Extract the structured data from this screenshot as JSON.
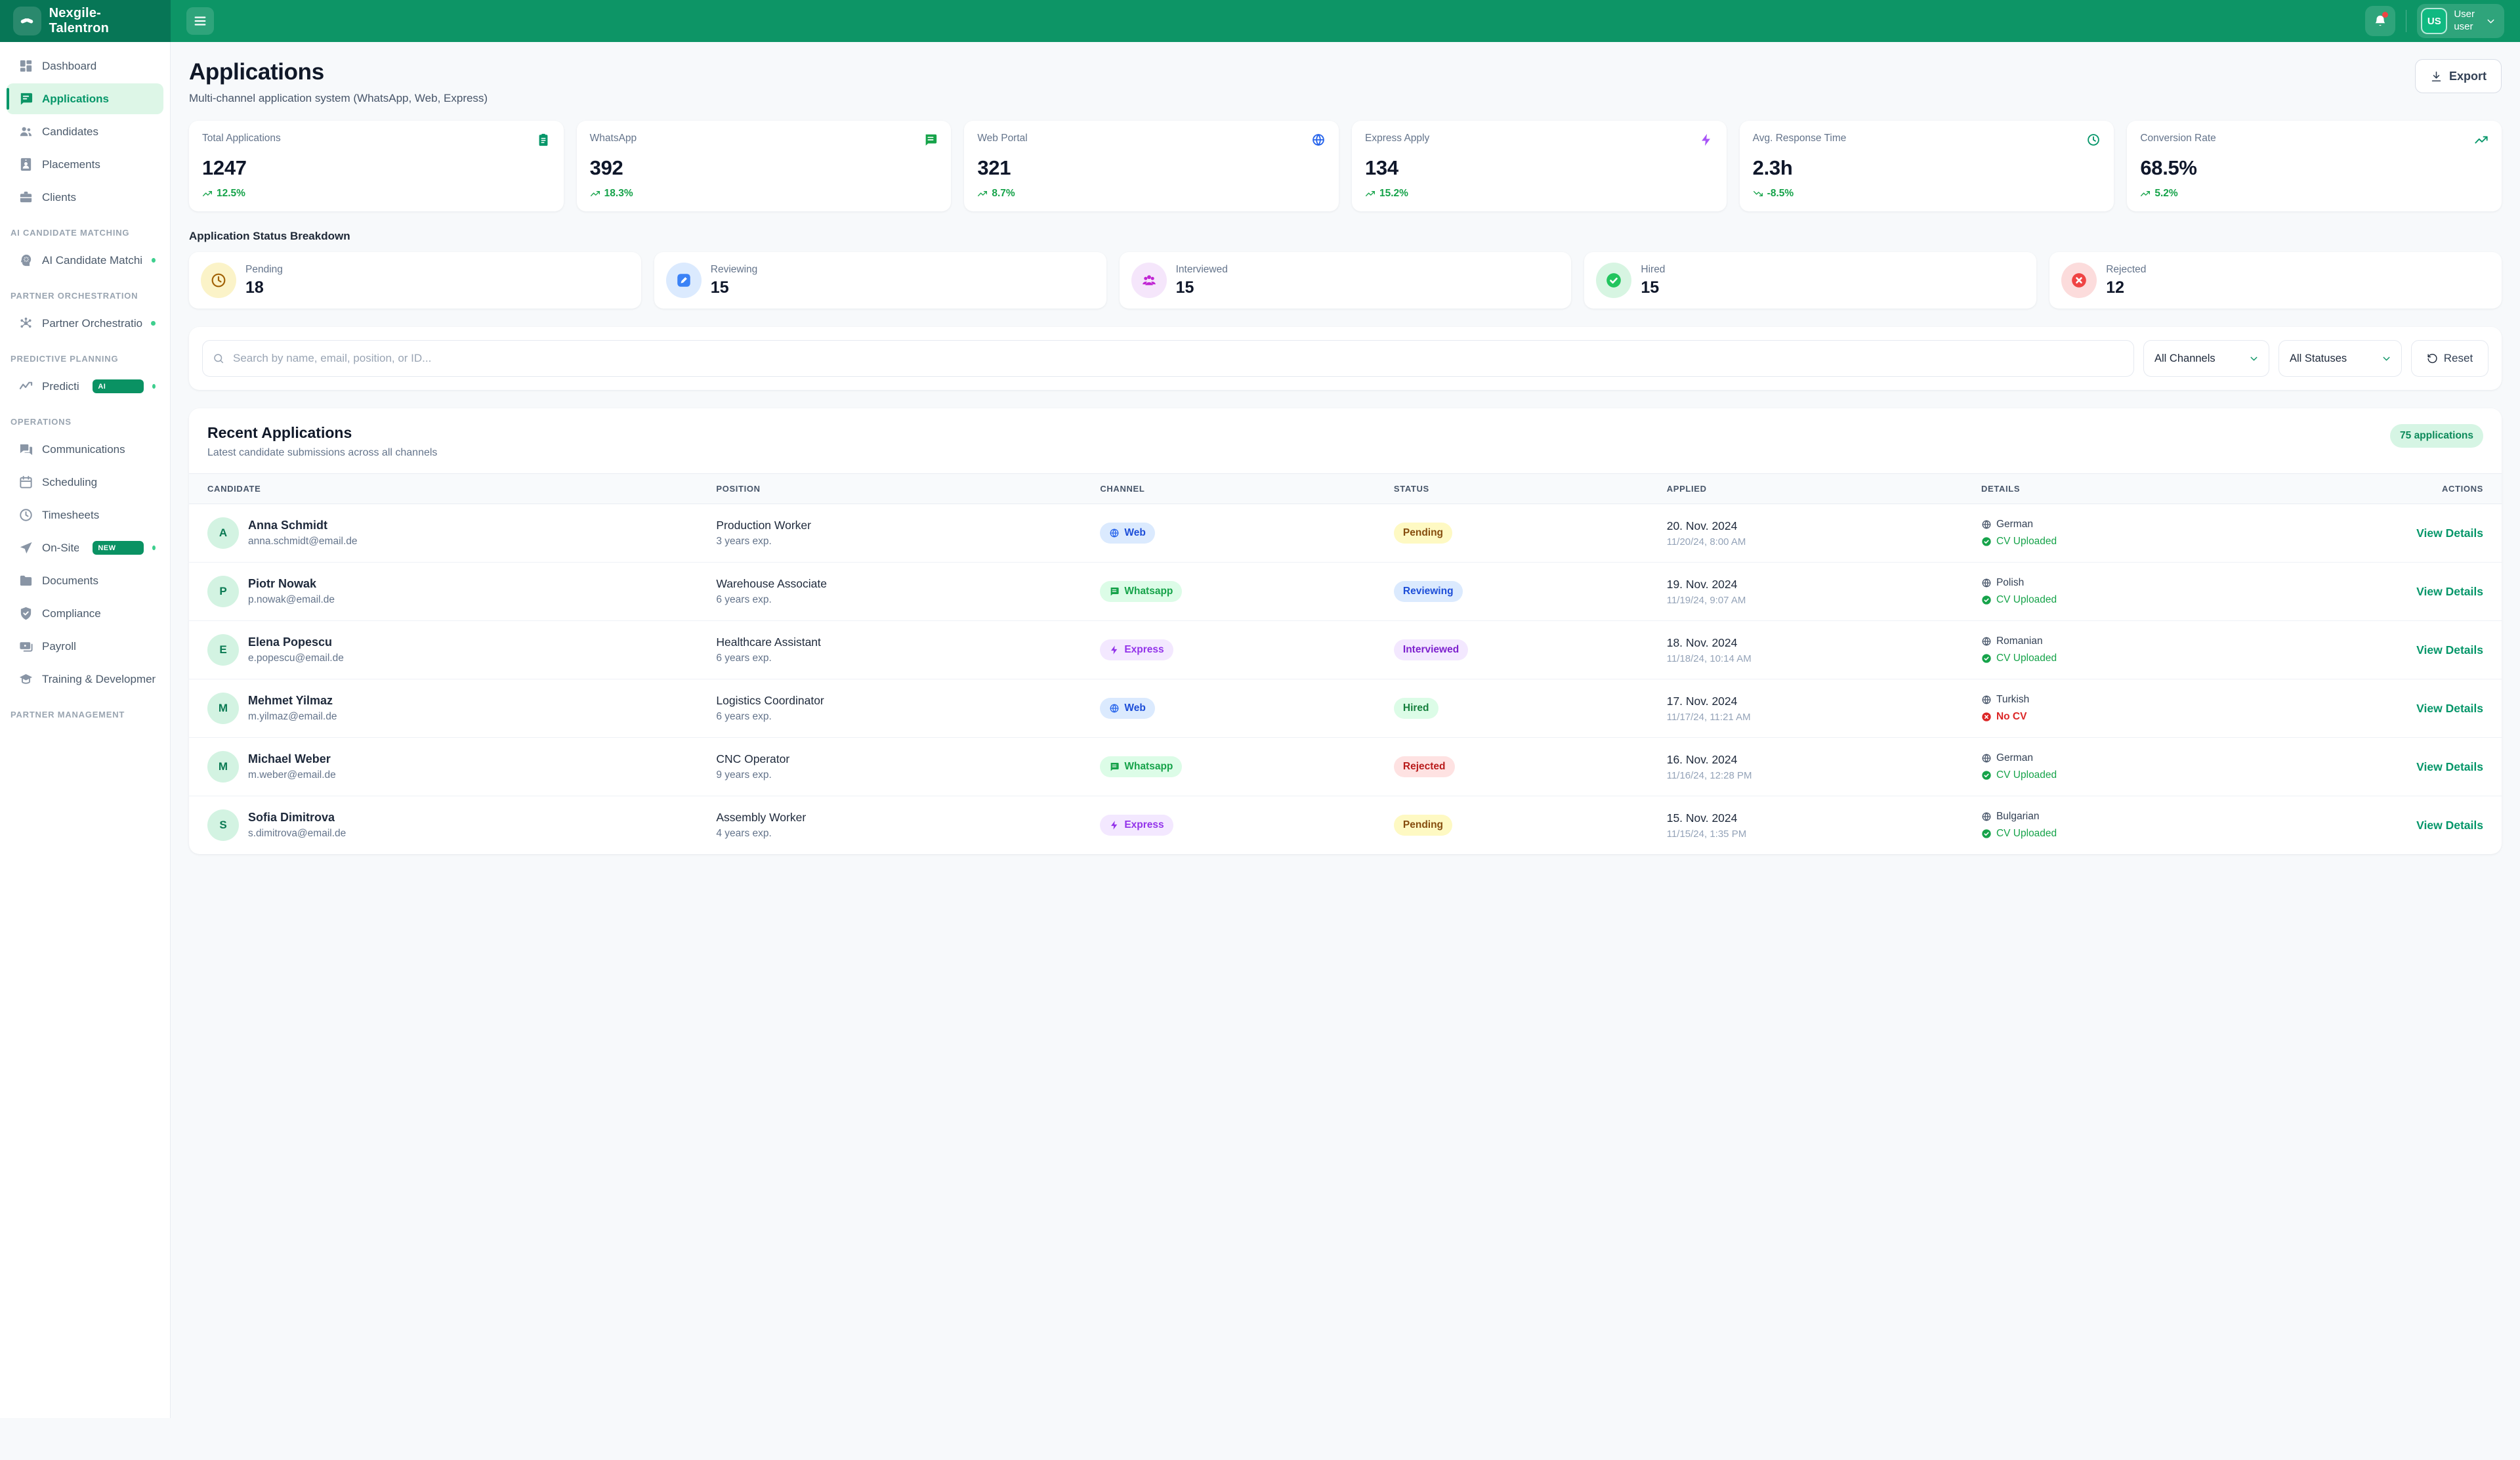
{
  "colors": {
    "topbar": "#0d9566",
    "brand_bg": "#077656",
    "accent": "#059669",
    "active_item_bg": "#ddf6e7"
  },
  "brand": {
    "name": "Nexgile-Talentron",
    "logo_icon": "handshake-icon"
  },
  "header": {
    "notifications": {
      "icon": "bell-icon",
      "has_unread": true
    },
    "user": {
      "initials": "US",
      "line1": "User",
      "line2": "user"
    }
  },
  "sidebar": {
    "sections": [
      {
        "title": "",
        "items": [
          {
            "label": "Dashboard",
            "icon": "dashboard-icon",
            "active": false
          },
          {
            "label": "Applications",
            "icon": "applications-chat-icon",
            "active": true
          },
          {
            "label": "Candidates",
            "icon": "users-icon",
            "active": false
          },
          {
            "label": "Placements",
            "icon": "id-badge-icon",
            "active": false
          },
          {
            "label": "Clients",
            "icon": "briefcase-icon",
            "active": false
          }
        ]
      },
      {
        "title": "AI CANDIDATE MATCHING",
        "items": [
          {
            "label": "AI Candidate Matching",
            "icon": "ai-head-icon",
            "dot": true
          }
        ]
      },
      {
        "title": "PARTNER ORCHESTRATION",
        "items": [
          {
            "label": "Partner Orchestration",
            "icon": "network-icon",
            "dot": true
          }
        ]
      },
      {
        "title": "PREDICTIVE PLANNING",
        "items": [
          {
            "label": "Predictive I",
            "icon": "trend-line-icon",
            "badge": "AI",
            "dot": true
          }
        ]
      },
      {
        "title": "OPERATIONS",
        "items": [
          {
            "label": "Communications",
            "icon": "chat-double-icon"
          },
          {
            "label": "Scheduling",
            "icon": "calendar-icon"
          },
          {
            "label": "Timesheets",
            "icon": "clock-icon"
          },
          {
            "label": "On-Site Ma",
            "icon": "navigation-icon",
            "badge": "NEW",
            "dot": true
          },
          {
            "label": "Documents",
            "icon": "folder-icon"
          },
          {
            "label": "Compliance",
            "icon": "shield-check-icon"
          },
          {
            "label": "Payroll",
            "icon": "banknote-icon"
          },
          {
            "label": "Training & Development",
            "icon": "graduation-cap-icon"
          }
        ]
      },
      {
        "title": "PARTNER MANAGEMENT",
        "items": []
      }
    ]
  },
  "page": {
    "title": "Applications",
    "subtitle": "Multi-channel application system (WhatsApp, Web, Express)",
    "export_label": "Export"
  },
  "stats": [
    {
      "label": "Total Applications",
      "value": "1247",
      "change": "12.5%",
      "trend": "up",
      "icon": "clipboard-icon",
      "icon_color": "#059669"
    },
    {
      "label": "WhatsApp",
      "value": "392",
      "change": "18.3%",
      "trend": "up",
      "icon": "message-square-icon",
      "icon_color": "#16a34a"
    },
    {
      "label": "Web Portal",
      "value": "321",
      "change": "8.7%",
      "trend": "up",
      "icon": "globe-icon",
      "icon_color": "#2563eb"
    },
    {
      "label": "Express Apply",
      "value": "134",
      "change": "15.2%",
      "trend": "up",
      "icon": "zap-icon",
      "icon_color": "#a855f7"
    },
    {
      "label": "Avg. Response Time",
      "value": "2.3h",
      "change": "-8.5%",
      "trend": "down",
      "icon": "clock-icon",
      "icon_color": "#059669"
    },
    {
      "label": "Conversion Rate",
      "value": "68.5%",
      "change": "5.2%",
      "trend": "up",
      "icon": "trending-up-icon",
      "icon_color": "#059669"
    }
  ],
  "status_breakdown": {
    "title": "Application Status Breakdown",
    "items": [
      {
        "label": "Pending",
        "count": "18",
        "icon": "clock-icon",
        "circle_bg": "#fbf3c8",
        "icon_color": "#a16207"
      },
      {
        "label": "Reviewing",
        "count": "15",
        "icon": "pencil-square-icon",
        "circle_bg": "#dbeafe",
        "icon_color": "#3b82f6"
      },
      {
        "label": "Interviewed",
        "count": "15",
        "icon": "users-filled-icon",
        "circle_bg": "#f5e6fb",
        "icon_color": "#c026d3"
      },
      {
        "label": "Hired",
        "count": "15",
        "icon": "check-circle-icon",
        "circle_bg": "#d7f5e2",
        "icon_color": "#22c55e"
      },
      {
        "label": "Rejected",
        "count": "12",
        "icon": "x-circle-icon",
        "circle_bg": "#fcdcdc",
        "icon_color": "#ef4444"
      }
    ]
  },
  "filters": {
    "search_placeholder": "Search by name, email, position, or ID...",
    "channels_value": "All Channels",
    "statuses_value": "All Statuses",
    "reset_label": "Reset"
  },
  "table": {
    "title": "Recent Applications",
    "subtitle": "Latest candidate submissions across all channels",
    "badge": "75 applications",
    "columns": [
      "CANDIDATE",
      "POSITION",
      "CHANNEL",
      "STATUS",
      "APPLIED",
      "DETAILS",
      "ACTIONS"
    ],
    "action_label": "View Details",
    "rows": [
      {
        "initial": "A",
        "name": "Anna Schmidt",
        "email": "anna.schmidt@email.de",
        "position": "Production Worker",
        "experience": "3 years exp.",
        "channel": {
          "label": "Web",
          "type": "web"
        },
        "status": {
          "label": "Pending",
          "type": "pending"
        },
        "date": "20. Nov. 2024",
        "datetime": "11/20/24, 8:00 AM",
        "language": "German",
        "cv": {
          "label": "CV Uploaded",
          "uploaded": true
        }
      },
      {
        "initial": "P",
        "name": "Piotr Nowak",
        "email": "p.nowak@email.de",
        "position": "Warehouse Associate",
        "experience": "6 years exp.",
        "channel": {
          "label": "Whatsapp",
          "type": "whatsapp"
        },
        "status": {
          "label": "Reviewing",
          "type": "reviewing"
        },
        "date": "19. Nov. 2024",
        "datetime": "11/19/24, 9:07 AM",
        "language": "Polish",
        "cv": {
          "label": "CV Uploaded",
          "uploaded": true
        }
      },
      {
        "initial": "E",
        "name": "Elena Popescu",
        "email": "e.popescu@email.de",
        "position": "Healthcare Assistant",
        "experience": "6 years exp.",
        "channel": {
          "label": "Express",
          "type": "express"
        },
        "status": {
          "label": "Interviewed",
          "type": "interviewed"
        },
        "date": "18. Nov. 2024",
        "datetime": "11/18/24, 10:14 AM",
        "language": "Romanian",
        "cv": {
          "label": "CV Uploaded",
          "uploaded": true
        }
      },
      {
        "initial": "M",
        "name": "Mehmet Yilmaz",
        "email": "m.yilmaz@email.de",
        "position": "Logistics Coordinator",
        "experience": "6 years exp.",
        "channel": {
          "label": "Web",
          "type": "web"
        },
        "status": {
          "label": "Hired",
          "type": "hired"
        },
        "date": "17. Nov. 2024",
        "datetime": "11/17/24, 11:21 AM",
        "language": "Turkish",
        "cv": {
          "label": "No CV",
          "uploaded": false
        }
      },
      {
        "initial": "M",
        "name": "Michael Weber",
        "email": "m.weber@email.de",
        "position": "CNC Operator",
        "experience": "9 years exp.",
        "channel": {
          "label": "Whatsapp",
          "type": "whatsapp"
        },
        "status": {
          "label": "Rejected",
          "type": "rejected"
        },
        "date": "16. Nov. 2024",
        "datetime": "11/16/24, 12:28 PM",
        "language": "German",
        "cv": {
          "label": "CV Uploaded",
          "uploaded": true
        }
      },
      {
        "initial": "S",
        "name": "Sofia Dimitrova",
        "email": "s.dimitrova@email.de",
        "position": "Assembly Worker",
        "experience": "4 years exp.",
        "channel": {
          "label": "Express",
          "type": "express"
        },
        "status": {
          "label": "Pending",
          "type": "pending"
        },
        "date": "15. Nov. 2024",
        "datetime": "11/15/24, 1:35 PM",
        "language": "Bulgarian",
        "cv": {
          "label": "CV Uploaded",
          "uploaded": true
        }
      }
    ]
  }
}
